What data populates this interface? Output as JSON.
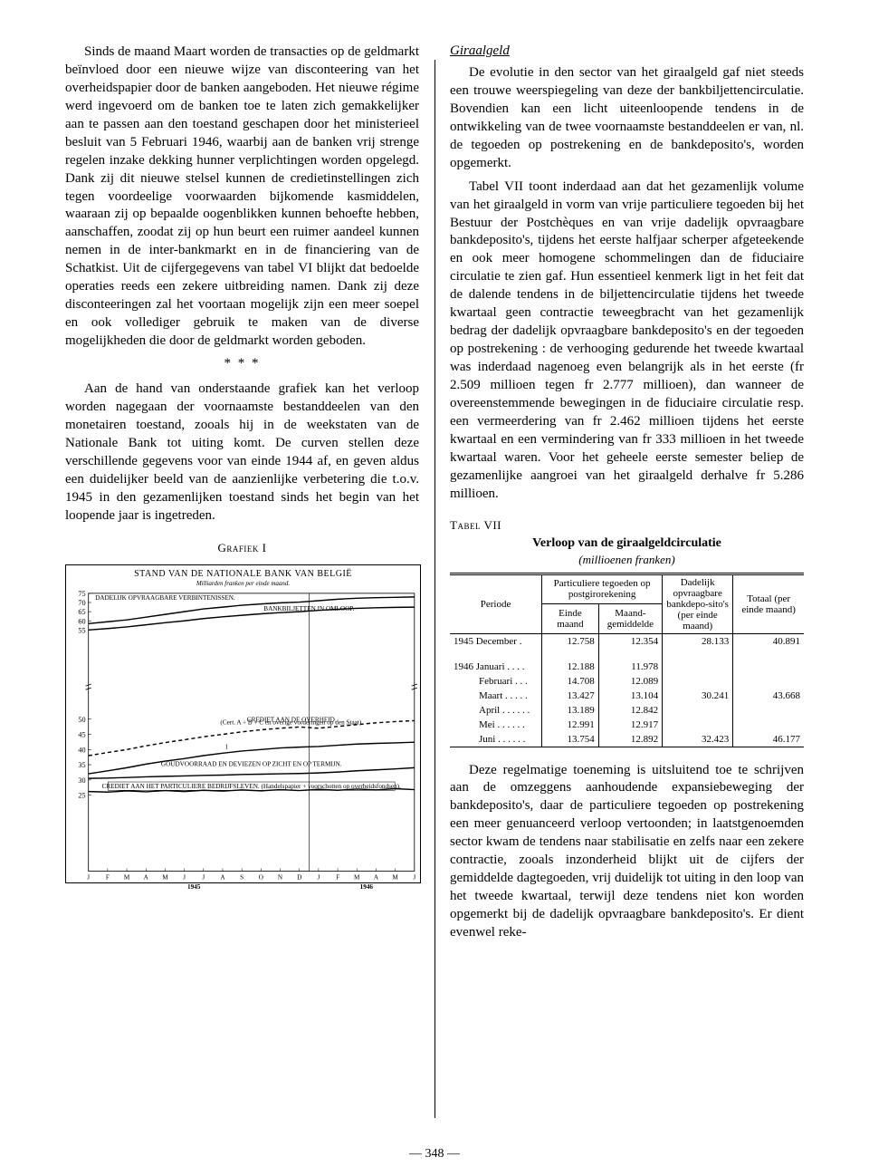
{
  "page_number": "— 348 —",
  "left": {
    "p1": "Sinds de maand Maart worden de transacties op de geldmarkt beïnvloed door een nieuwe wijze van disconteering van het overheidspapier door de banken aangeboden. Het nieuwe régime werd ingevoerd om de banken toe te laten zich gemakkelijker aan te passen aan den toestand geschapen door het ministerieel besluit van 5 Februari 1946, waarbij aan de banken vrij strenge regelen inzake dekking hunner verplichtingen worden opgelegd. Dank zij dit nieuwe stelsel kunnen de credietinstellingen zich tegen voordeelige voorwaarden bijkomende kasmiddelen, waaraan zij op bepaalde oogenblikken kunnen behoefte hebben, aanschaffen, zoodat zij op hun beurt een ruimer aandeel kunnen nemen in de inter-bankmarkt en in de financiering van de Schatkist. Uit de cijfergegevens van tabel VI blijkt dat bedoelde operaties reeds een zekere uitbreiding namen. Dank zij deze disconteeringen zal het voortaan mogelijk zijn een meer soepel en ook vollediger gebruik te maken van de diverse mogelijkheden die door de geldmarkt worden geboden.",
    "stars": "* * *",
    "p2": "Aan de hand van onderstaande grafiek kan het verloop worden nagegaan der voornaamste bestanddeelen van den monetairen toestand, zooals hij in de weekstaten van de Nationale Bank tot uiting komt. De curven stellen deze verschillende gegevens voor van einde 1944 af, en geven aldus een duidelijker beeld van de aanzienlijke verbetering die t.o.v. 1945 in den gezamenlijken toestand sinds het begin van het loopende jaar is ingetreden.",
    "grafiek_label": "Grafiek I"
  },
  "right": {
    "section_title": "Giraalgeld",
    "p1": "De evolutie in den sector van het giraalgeld gaf niet steeds een trouwe weerspiegeling van deze der bankbiljettencirculatie. Bovendien kan een licht uiteenloopende tendens in de ontwikkeling van de twee voornaamste bestanddeelen er van, nl. de tegoeden op postrekening en de bankdeposito's, worden opgemerkt.",
    "p2": "Tabel VII toont inderdaad aan dat het gezamenlijk volume van het giraalgeld in vorm van vrije particuliere tegoeden bij het Bestuur der Postchèques en van vrije dadelijk opvraagbare bankdeposito's, tijdens het eerste halfjaar scherper afgeteekende en ook meer homogene schommelingen dan de fiduciaire circulatie te zien gaf. Hun essentieel kenmerk ligt in het feit dat de dalende tendens in de biljettencirculatie tijdens het tweede kwartaal geen contractie teweegbracht van het gezamenlijk bedrag der dadelijk opvraagbare bankdeposito's en der tegoeden op postrekening : de verhooging gedurende het tweede kwartaal was inderdaad nagenoeg even belangrijk als in het eerste (fr 2.509 millioen tegen fr 2.777 millioen), dan wanneer de overeenstemmende bewegingen in de fiduciaire circulatie resp. een vermeerdering van fr 2.462 millioen tijdens het eerste kwartaal en een vermindering van fr 333 millioen in het tweede kwartaal waren. Voor het geheele eerste semester beliep de gezamenlijke aangroei van het giraalgeld derhalve fr 5.286 millioen.",
    "tabel_label": "Tabel VII",
    "tabel_title": "Verloop van de giraalgeldcirculatie",
    "tabel_subtitle": "(millioenen franken)",
    "p3": "Deze regelmatige toeneming is uitsluitend toe te schrijven aan de omzeggens aanhoudende expansiebeweging der bankdeposito's, daar de particuliere tegoeden op postrekening een meer genuanceerd verloop vertoonden; in laatstgenoemden sector kwam de tendens naar stabilisatie en zelfs naar een zekere contractie, zooals inzonderheid blijkt uit de cijfers der gemiddelde dagtegoeden, vrij duidelijk tot uiting in den loop van het tweede kwartaal, terwijl deze tendens niet kon worden opgemerkt bij de dadelijk opvraagbare bankdeposito's. Er dient evenwel reke-"
  },
  "chart": {
    "type": "line",
    "title": "STAND VAN DE NATIONALE BANK VAN BELGIË",
    "subtitle": "Milliarden franken per einde maand.",
    "background_color": "#ffffff",
    "grid_color": "#000000",
    "line_color": "#000000",
    "line_width": 1.4,
    "ylim_upper": [
      25,
      75
    ],
    "ylim_lower": [
      0,
      60
    ],
    "break_at": 55,
    "yticks_upper": [
      55,
      60,
      65,
      70,
      75
    ],
    "yticks_lower": [
      25,
      30,
      35,
      40,
      45,
      50
    ],
    "months": [
      "J",
      "F",
      "M",
      "A",
      "M",
      "J",
      "J",
      "A",
      "S",
      "O",
      "N",
      "D",
      "J",
      "F",
      "M",
      "A",
      "M",
      "J"
    ],
    "year_labels": [
      "1945",
      "1946"
    ],
    "series": [
      {
        "name": "DADELIJK OPVRAAGBARE VERBINTENISSEN.",
        "label_pos": [
          4.0,
          71.5
        ],
        "panel": "upper",
        "dash": null,
        "values": [
          58.5,
          59.5,
          60.5,
          62.0,
          63.5,
          65.0,
          66.5,
          67.5,
          68.5,
          69.2,
          69.8,
          70.2,
          71.0,
          71.8,
          72.3,
          72.6,
          72.8,
          73.0
        ]
      },
      {
        "name": "BANKBILJETTEN IN OMLOOP.",
        "label_pos": [
          11.5,
          65.5
        ],
        "panel": "upper",
        "dash": null,
        "values": [
          55.0,
          55.8,
          56.7,
          57.8,
          59.0,
          60.0,
          61.2,
          62.2,
          63.0,
          63.8,
          64.5,
          65.0,
          65.7,
          66.3,
          66.8,
          67.1,
          67.3,
          67.5
        ]
      },
      {
        "name": "CREDIET AAN DE OVERHEID.",
        "note": "(Cert. A + B + C en overige vorderingen op den Staat).",
        "label_pos": [
          10.6,
          49.2
        ],
        "note_pos": [
          10.6,
          48.3
        ],
        "panel": "lower",
        "dash": "4,3",
        "values": [
          38.0,
          39.0,
          40.0,
          41.2,
          42.3,
          43.2,
          44.2,
          45.0,
          45.8,
          46.5,
          47.0,
          47.4,
          47.0,
          47.6,
          48.2,
          48.8,
          49.2,
          49.5
        ]
      },
      {
        "name": "1",
        "label_pos": [
          7.2,
          40.2
        ],
        "panel": "lower",
        "dash": null,
        "values": [
          32.0,
          33.0,
          34.0,
          35.2,
          36.2,
          37.0,
          38.0,
          38.8,
          39.5,
          40.0,
          40.5,
          40.8,
          41.0,
          41.4,
          41.8,
          42.0,
          42.2,
          42.4
        ]
      },
      {
        "name": "GOUDVOORRAAD EN DEVIEZEN OP ZICHT EN OP TERMIJN.",
        "label_pos": [
          8.5,
          34.5
        ],
        "panel": "lower",
        "dash": null,
        "values": [
          30.5,
          30.6,
          30.8,
          31.0,
          31.2,
          31.3,
          31.5,
          31.6,
          31.8,
          31.9,
          32.0,
          32.1,
          32.3,
          32.6,
          33.0,
          33.3,
          33.6,
          34.0
        ]
      },
      {
        "name": "CREDIET AAN HET PARTICULIERE BEDRIJFSLEVEN. (Handelspapier + voorschotten op overheidsfondsen).",
        "label_pos": [
          8.5,
          27.2
        ],
        "framed": true,
        "panel": "lower",
        "dash": null,
        "values": [
          26.2,
          26.0,
          26.4,
          26.1,
          26.5,
          26.2,
          26.6,
          26.3,
          26.7,
          26.4,
          26.8,
          26.5,
          26.9,
          26.6,
          27.0,
          26.7,
          27.1,
          26.8
        ]
      }
    ]
  },
  "table": {
    "header": {
      "periode": "Periode",
      "post_group": "Particuliere tegoeden op postgirorekening",
      "einde": "Einde maand",
      "gemiddeld": "Maand-gemiddelde",
      "deposito": "Dadelijk opvraagbare bankdepo-sito's (per einde maand)",
      "totaal": "Totaal (per einde maand)"
    },
    "rows": [
      {
        "period": "1945 December .",
        "v": [
          "12.758",
          "12.354",
          "28.133",
          "40.891"
        ],
        "sep_after": true
      },
      {
        "period": "1946 Januari . . . .",
        "v": [
          "12.188",
          "11.978",
          "",
          ""
        ]
      },
      {
        "period": "Februari . . .",
        "v": [
          "14.708",
          "12.089",
          "",
          ""
        ]
      },
      {
        "period": "Maart . . . . .",
        "v": [
          "13.427",
          "13.104",
          "30.241",
          "43.668"
        ]
      },
      {
        "period": "April . . . . . .",
        "v": [
          "13.189",
          "12.842",
          "",
          ""
        ]
      },
      {
        "period": "Mei  . . . . . .",
        "v": [
          "12.991",
          "12.917",
          "",
          ""
        ]
      },
      {
        "period": "Juni  . . . . . .",
        "v": [
          "13.754",
          "12.892",
          "32.423",
          "46.177"
        ]
      }
    ],
    "col_widths": [
      "26%",
      "16%",
      "18%",
      "20%",
      "20%"
    ],
    "font_size": 11
  }
}
